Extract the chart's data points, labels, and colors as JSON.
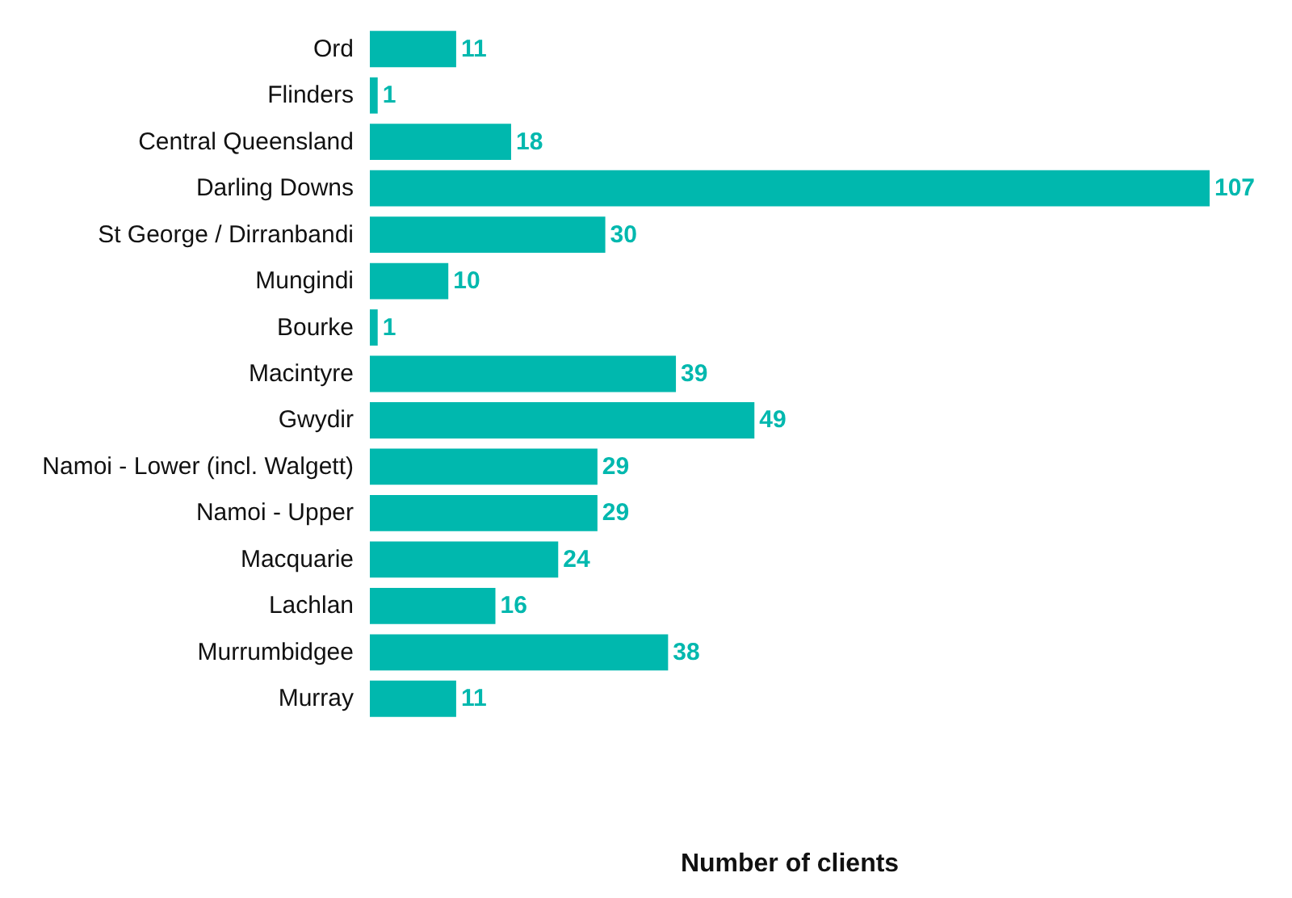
{
  "chart_data": {
    "type": "bar",
    "orientation": "horizontal",
    "xlabel": "Number of clients",
    "categories": [
      "Ord",
      "Flinders",
      "Central Queensland",
      "Darling Downs",
      "St George / Dirranbandi",
      "Mungindi",
      "Bourke",
      "Macintyre",
      "Gwydir",
      "Namoi - Lower (incl. Walgett)",
      "Namoi - Upper",
      "Macquarie",
      "Lachlan",
      "Murrumbidgee",
      "Murray"
    ],
    "values": [
      11,
      1,
      18,
      107,
      30,
      10,
      1,
      39,
      49,
      29,
      29,
      24,
      16,
      38,
      11
    ],
    "color": "#00b8ae",
    "data_labels": true
  }
}
